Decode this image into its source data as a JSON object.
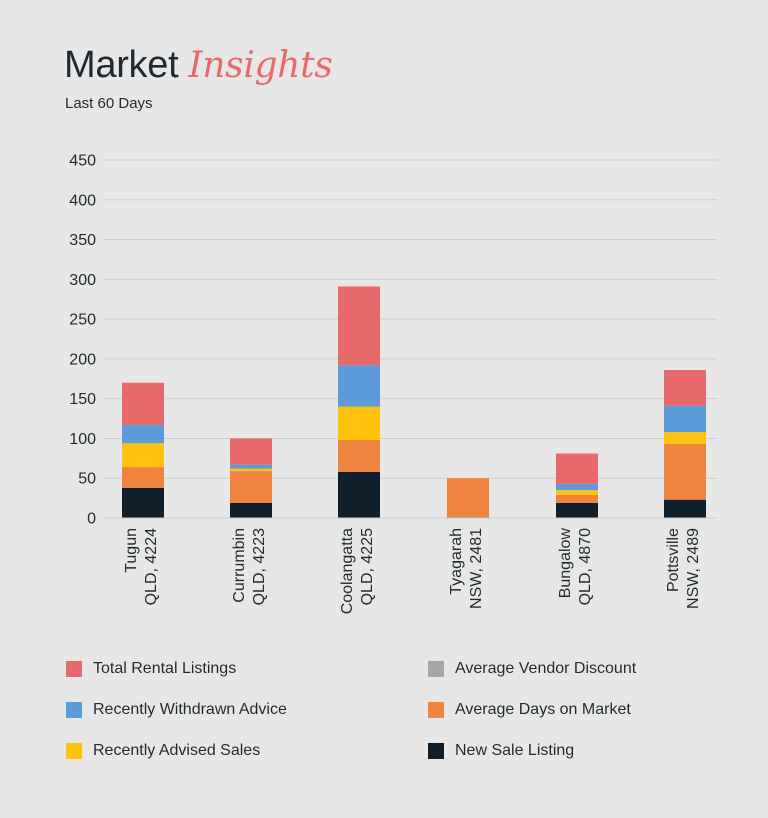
{
  "header": {
    "title_main": "Market",
    "title_accent": "Insights",
    "subtitle": "Last 60 Days"
  },
  "colors": {
    "background": "#e7e7e7",
    "grid": "#cfcfcf",
    "text": "#1f2a30",
    "accent": "#e8696a"
  },
  "chart_data": {
    "type": "bar",
    "stacked": true,
    "ylim": [
      0,
      450
    ],
    "yticks": [
      0,
      50,
      100,
      150,
      200,
      250,
      300,
      350,
      400,
      450
    ],
    "grid": true,
    "legend_position": "bottom",
    "categories": [
      [
        "Tugun",
        "QLD, 4224"
      ],
      [
        "Currumbin",
        "QLD, 4223"
      ],
      [
        "Coolangatta",
        "QLD, 4225"
      ],
      [
        "Tyagarah",
        "NSW, 2481"
      ],
      [
        "Bungalow",
        "QLD, 4870"
      ],
      [
        "Pottsville",
        "NSW, 2489"
      ]
    ],
    "series": [
      {
        "name": "New Sale Listing",
        "color": "#0f1f2b",
        "values": [
          38,
          19,
          58,
          1,
          19,
          23
        ]
      },
      {
        "name": "Average Vendor Discount",
        "color": "#a6a6a6",
        "values": [
          0,
          0,
          0,
          0,
          0,
          0
        ]
      },
      {
        "name": "Average Days on Market",
        "color": "#f0843e",
        "values": [
          26,
          40,
          40,
          49,
          10,
          70
        ]
      },
      {
        "name": "Recently Advised Sales",
        "color": "#ffc30e",
        "values": [
          30,
          3,
          42,
          0,
          6,
          15
        ]
      },
      {
        "name": "Recently Withdrawn Advice",
        "color": "#5d9ad8",
        "values": [
          23,
          5,
          52,
          0,
          8,
          33
        ]
      },
      {
        "name": "Total Rental Listings",
        "color": "#e8696a",
        "values": [
          53,
          33,
          99,
          0,
          38,
          45
        ]
      }
    ],
    "legend_order": [
      "Total Rental Listings",
      "Average Vendor Discount",
      "Recently Withdrawn Advice",
      "Average Days on Market",
      "Recently Advised Sales",
      "New Sale Listing"
    ]
  }
}
